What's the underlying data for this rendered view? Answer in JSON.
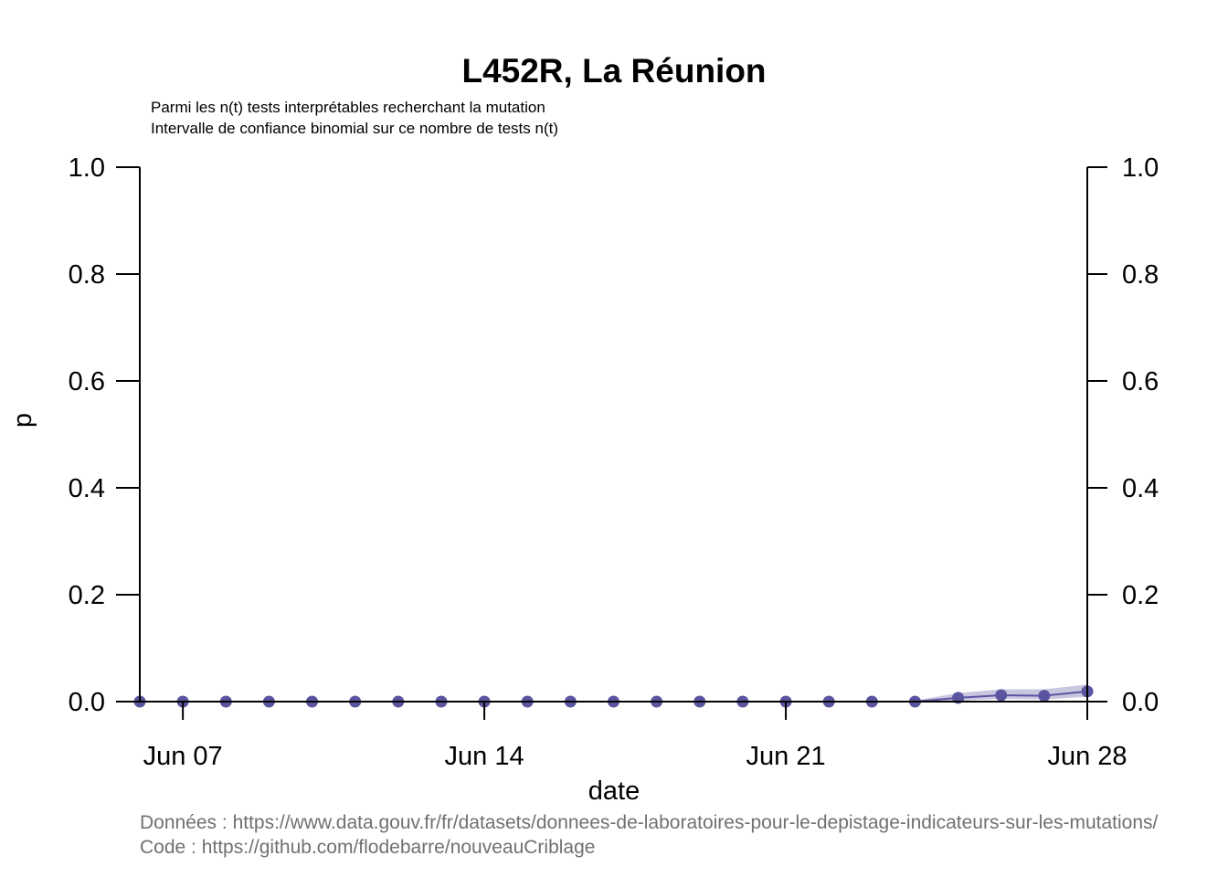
{
  "chart_data": {
    "type": "line",
    "title": "L452R, La Réunion",
    "subtitle_lines": [
      "Parmi les n(t) tests interprétables recherchant la mutation",
      "Intervalle de confiance binomial sur ce nombre de tests n(t)"
    ],
    "xlabel": "date",
    "ylabel": "p",
    "x_range": [
      "2021-06-06",
      "2021-06-28"
    ],
    "ylim": [
      0,
      1
    ],
    "y_ticks": [
      0.0,
      0.2,
      0.4,
      0.6,
      0.8,
      1.0
    ],
    "y_tick_labels": [
      "0.0",
      "0.2",
      "0.4",
      "0.6",
      "0.8",
      "1.0"
    ],
    "x_ticks": [
      {
        "date": "2021-06-07",
        "label": "Jun 07"
      },
      {
        "date": "2021-06-14",
        "label": "Jun 14"
      },
      {
        "date": "2021-06-21",
        "label": "Jun 21"
      },
      {
        "date": "2021-06-28",
        "label": "Jun 28"
      }
    ],
    "right_axis": true,
    "grid": false,
    "series": [
      {
        "color": "#5b55a0",
        "band_color": "#c9c7e0",
        "points": [
          {
            "x": "2021-06-06",
            "y": 0.0,
            "lo": 0.0,
            "hi": 0.0
          },
          {
            "x": "2021-06-07",
            "y": 0.0,
            "lo": 0.0,
            "hi": 0.0
          },
          {
            "x": "2021-06-08",
            "y": 0.0,
            "lo": 0.0,
            "hi": 0.0
          },
          {
            "x": "2021-06-09",
            "y": 0.0,
            "lo": 0.0,
            "hi": 0.0
          },
          {
            "x": "2021-06-10",
            "y": 0.0,
            "lo": 0.0,
            "hi": 0.0
          },
          {
            "x": "2021-06-11",
            "y": 0.0,
            "lo": 0.0,
            "hi": 0.0
          },
          {
            "x": "2021-06-12",
            "y": 0.0,
            "lo": 0.0,
            "hi": 0.0
          },
          {
            "x": "2021-06-13",
            "y": 0.0,
            "lo": 0.0,
            "hi": 0.0
          },
          {
            "x": "2021-06-14",
            "y": 0.0,
            "lo": 0.0,
            "hi": 0.0
          },
          {
            "x": "2021-06-15",
            "y": 0.0,
            "lo": 0.0,
            "hi": 0.0
          },
          {
            "x": "2021-06-16",
            "y": 0.0,
            "lo": 0.0,
            "hi": 0.0
          },
          {
            "x": "2021-06-17",
            "y": 0.0,
            "lo": 0.0,
            "hi": 0.0
          },
          {
            "x": "2021-06-18",
            "y": 0.0,
            "lo": 0.0,
            "hi": 0.0
          },
          {
            "x": "2021-06-19",
            "y": 0.0,
            "lo": 0.0,
            "hi": 0.0
          },
          {
            "x": "2021-06-20",
            "y": 0.0,
            "lo": 0.0,
            "hi": 0.0
          },
          {
            "x": "2021-06-21",
            "y": 0.0,
            "lo": 0.0,
            "hi": 0.0
          },
          {
            "x": "2021-06-22",
            "y": 0.0,
            "lo": 0.0,
            "hi": 0.0
          },
          {
            "x": "2021-06-23",
            "y": 0.0,
            "lo": 0.0,
            "hi": 0.0
          },
          {
            "x": "2021-06-24",
            "y": 0.0,
            "lo": 0.0,
            "hi": 0.002
          },
          {
            "x": "2021-06-25",
            "y": 0.007,
            "lo": 0.002,
            "hi": 0.016
          },
          {
            "x": "2021-06-26",
            "y": 0.012,
            "lo": 0.005,
            "hi": 0.023
          },
          {
            "x": "2021-06-27",
            "y": 0.011,
            "lo": 0.004,
            "hi": 0.023
          },
          {
            "x": "2021-06-28",
            "y": 0.019,
            "lo": 0.009,
            "hi": 0.032
          }
        ]
      }
    ]
  },
  "source": {
    "data_line": "Données : https://www.data.gouv.fr/fr/datasets/donnees-de-laboratoires-pour-le-depistage-indicateurs-sur-les-mutations/",
    "code_line": "Code : https://github.com/flodebarre/nouveauCriblage"
  }
}
